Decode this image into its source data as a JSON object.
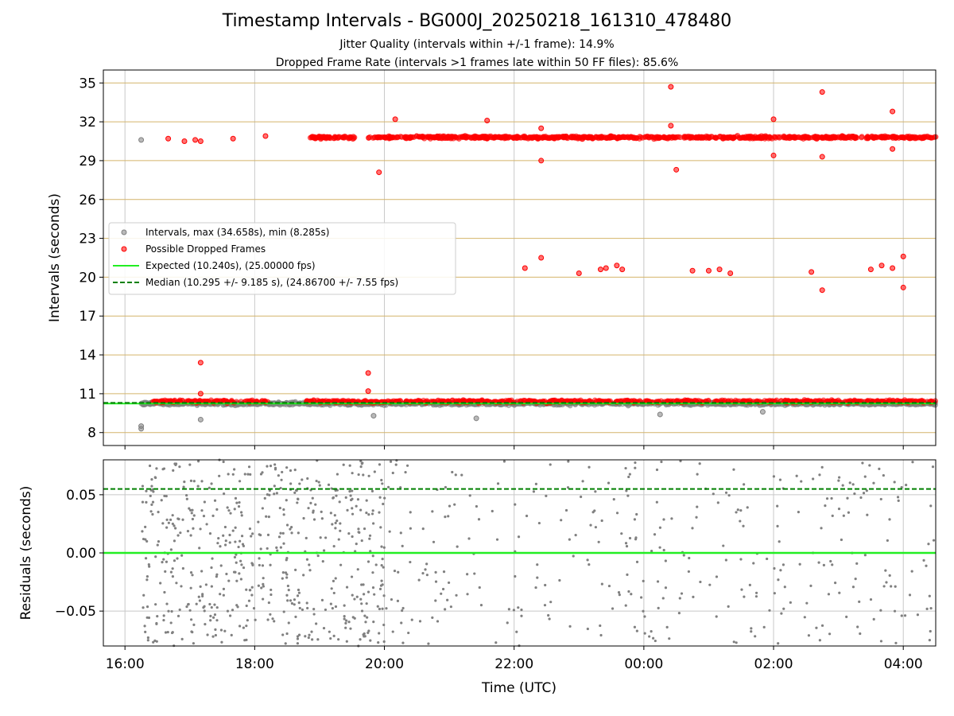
{
  "title": "Timestamp Intervals - BG000J_20250218_161310_478480",
  "subtitle_1": "Jitter Quality (intervals within +/-1 frame): 14.9%",
  "subtitle_2": "Dropped Frame Rate (intervals >1 frames late within 50 FF files): 85.6%",
  "colors": {
    "intervals": "#808080",
    "dropped": "#ff0000",
    "expected": "#22ee22",
    "median": "#008000",
    "hgrid_top": "#d4b46a",
    "grid": "#c8c8c8"
  },
  "chart_data": [
    {
      "type": "scatter",
      "id": "intervals",
      "xlabel": "",
      "ylabel": "Intervals (seconds)",
      "x_range": [
        "15:40",
        "04:30"
      ],
      "x_ticks": [
        "16:00",
        "18:00",
        "20:00",
        "22:00",
        "00:00",
        "02:00",
        "04:00"
      ],
      "ylim": [
        7,
        36
      ],
      "y_ticks": [
        8,
        11,
        14,
        17,
        20,
        23,
        26,
        29,
        32,
        35
      ],
      "grid": true,
      "legend_position": "center-left",
      "series": [
        {
          "name": "Intervals, max (34.658s), min (8.285s)",
          "kind": "points",
          "summary": {
            "max": 34.658,
            "min": 8.285,
            "typical": 10.24,
            "time_span": [
              "16:15",
              "04:30"
            ]
          },
          "outliers": [
            [
              "16:15",
              30.6
            ],
            [
              "16:15",
              8.3
            ],
            [
              "16:15",
              8.5
            ],
            [
              "17:10",
              9.0
            ],
            [
              "19:50",
              9.3
            ],
            [
              "21:25",
              9.1
            ],
            [
              "00:15",
              9.4
            ],
            [
              "01:50",
              9.6
            ]
          ]
        },
        {
          "name": "Possible Dropped Frames",
          "kind": "points",
          "bands": [
            {
              "value": 10.4,
              "time_span": [
                "16:25",
                "04:30"
              ]
            },
            {
              "value": 20.5,
              "time_span": [
                "16:30",
                "04:00"
              ]
            },
            {
              "value": 30.8,
              "time_span": [
                "18:50",
                "04:30"
              ]
            }
          ],
          "points": [
            [
              "16:40",
              30.7
            ],
            [
              "16:55",
              30.5
            ],
            [
              "17:05",
              30.6
            ],
            [
              "17:10",
              30.5
            ],
            [
              "17:40",
              30.7
            ],
            [
              "18:10",
              30.9
            ],
            [
              "19:55",
              28.1
            ],
            [
              "20:10",
              32.2
            ],
            [
              "21:35",
              32.1
            ],
            [
              "22:25",
              31.5
            ],
            [
              "22:25",
              29.0
            ],
            [
              "00:25",
              31.7
            ],
            [
              "00:25",
              34.7
            ],
            [
              "00:30",
              28.3
            ],
            [
              "02:00",
              32.2
            ],
            [
              "02:00",
              29.4
            ],
            [
              "02:45",
              34.3
            ],
            [
              "02:45",
              29.3
            ],
            [
              "03:50",
              32.8
            ],
            [
              "03:50",
              29.9
            ],
            [
              "17:10",
              13.4
            ],
            [
              "17:10",
              11.0
            ],
            [
              "19:45",
              12.6
            ],
            [
              "19:45",
              11.2
            ],
            [
              "22:10",
              20.7
            ],
            [
              "22:25",
              21.5
            ],
            [
              "23:00",
              20.3
            ],
            [
              "23:20",
              20.6
            ],
            [
              "23:25",
              20.7
            ],
            [
              "23:35",
              20.9
            ],
            [
              "23:40",
              20.6
            ],
            [
              "00:45",
              20.5
            ],
            [
              "01:00",
              20.5
            ],
            [
              "01:10",
              20.6
            ],
            [
              "01:20",
              20.3
            ],
            [
              "02:35",
              20.4
            ],
            [
              "02:45",
              19.0
            ],
            [
              "03:30",
              20.6
            ],
            [
              "03:40",
              20.9
            ],
            [
              "03:50",
              20.7
            ],
            [
              "04:00",
              21.6
            ],
            [
              "04:00",
              19.2
            ]
          ]
        },
        {
          "name": "Expected (10.240s), (25.00000 fps)",
          "kind": "line",
          "value": 10.24
        },
        {
          "name": "Median (10.295 +/- 9.185 s), (24.86700 +/- 7.55 fps)",
          "kind": "dashed-line",
          "value": 10.295
        }
      ]
    },
    {
      "type": "scatter",
      "id": "residuals",
      "xlabel": "Time (UTC)",
      "ylabel": "Residuals (seconds)",
      "x_range": [
        "15:40",
        "04:30"
      ],
      "x_ticks": [
        "16:00",
        "18:00",
        "20:00",
        "22:00",
        "00:00",
        "02:00",
        "04:00"
      ],
      "ylim": [
        -0.08,
        0.08
      ],
      "y_ticks": [
        "−0.05",
        "0.00",
        "0.05"
      ],
      "y_tick_values": [
        -0.05,
        0.0,
        0.05
      ],
      "grid": true,
      "series": [
        {
          "kind": "points",
          "range": [
            -0.08,
            0.08
          ],
          "time_span": [
            "16:15",
            "04:30"
          ],
          "density": "dense 16:15-20:00, sparser after"
        },
        {
          "kind": "line",
          "value": 0.0
        },
        {
          "kind": "dashed-line",
          "value": 0.055
        }
      ]
    }
  ]
}
